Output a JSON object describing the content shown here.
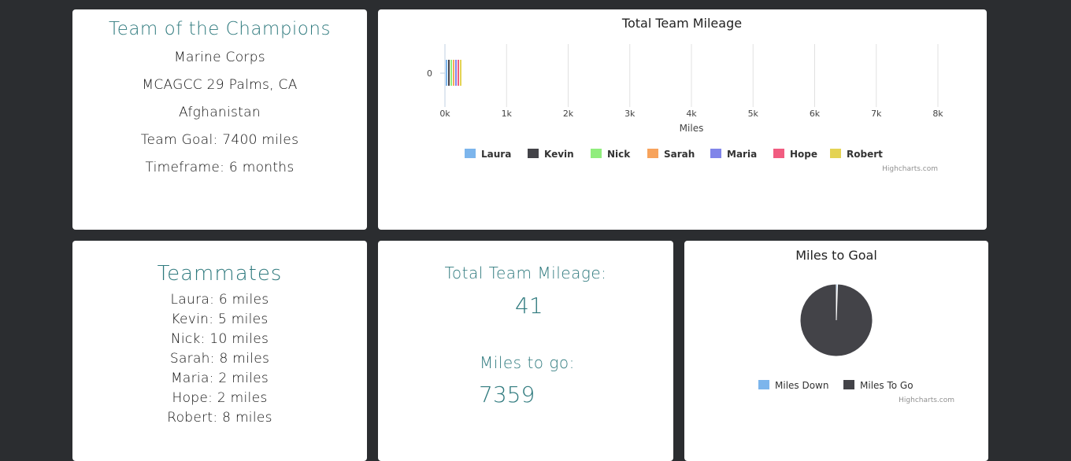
{
  "info": {
    "team_name": "Team of the Champions",
    "lines": [
      "Marine Corps",
      "MCAGCC 29 Palms, CA",
      "Afghanistan",
      "Team Goal: 7400 miles",
      "Timeframe: 6 months"
    ]
  },
  "teammates": {
    "title": "Teammates",
    "items": [
      "Laura: 6 miles",
      "Kevin: 5 miles",
      "Nick: 10 miles",
      "Sarah: 8 miles",
      "Maria: 2 miles",
      "Hope: 2 miles",
      "Robert: 8 miles"
    ]
  },
  "totals": {
    "mileage_label": "Total Team Mileage:",
    "mileage_value": "41",
    "togo_label": "Miles to go:",
    "togo_value": "7359"
  },
  "credits": "Highcharts.com",
  "colors": {
    "accent": "#2f7a7e",
    "background": "#2b2d30"
  },
  "chart_data": [
    {
      "type": "bar",
      "title": "Total Team Mileage",
      "xlabel": "Miles",
      "ylabel": "",
      "categories": [
        "0"
      ],
      "xlim": [
        0,
        8000
      ],
      "ticks": [
        "0k",
        "1k",
        "2k",
        "3k",
        "4k",
        "5k",
        "6k",
        "7k",
        "8k"
      ],
      "grid": true,
      "legend_position": "bottom",
      "series": [
        {
          "name": "Laura",
          "values": [
            6
          ],
          "color": "#7cb5ec"
        },
        {
          "name": "Kevin",
          "values": [
            5
          ],
          "color": "#434348"
        },
        {
          "name": "Nick",
          "values": [
            10
          ],
          "color": "#90ed7d"
        },
        {
          "name": "Sarah",
          "values": [
            8
          ],
          "color": "#f7a35c"
        },
        {
          "name": "Maria",
          "values": [
            2
          ],
          "color": "#8085e9"
        },
        {
          "name": "Hope",
          "values": [
            2
          ],
          "color": "#f15c80"
        },
        {
          "name": "Robert",
          "values": [
            8
          ],
          "color": "#e4d354"
        }
      ]
    },
    {
      "type": "pie",
      "title": "Miles to Goal",
      "legend_position": "bottom",
      "slices": [
        {
          "name": "Miles Down",
          "value": 41,
          "color": "#7cb5ec"
        },
        {
          "name": "Miles To Go",
          "value": 7359,
          "color": "#434348"
        }
      ]
    }
  ]
}
